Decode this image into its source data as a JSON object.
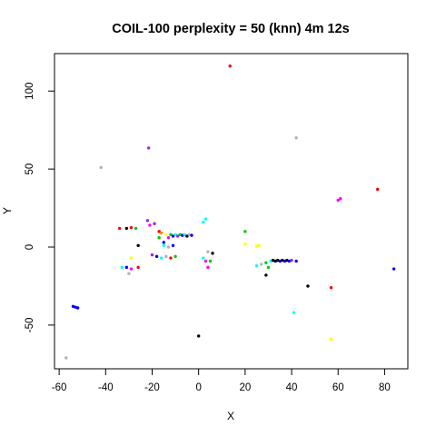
{
  "chart_data": {
    "type": "scatter",
    "title": "COIL-100 perplexity = 50 (knn) 4m 12s",
    "xlabel": "X",
    "ylabel": "Y",
    "xlim": [
      -62,
      90
    ],
    "ylim": [
      -78,
      124
    ],
    "xticks": [
      -60,
      -40,
      -20,
      0,
      20,
      40,
      60,
      80
    ],
    "yticks": [
      -50,
      0,
      50,
      100
    ],
    "xtick_labels": [
      "-60",
      "-40",
      "-20",
      "0",
      "20",
      "40",
      "60",
      "80"
    ],
    "ytick_labels": [
      "-50",
      "0",
      "50",
      "100"
    ],
    "grid": false,
    "legend": "none",
    "points": [
      {
        "x": 13.5,
        "y": 116,
        "color": "#ff0000"
      },
      {
        "x": 42,
        "y": 70,
        "color": "#b3b3b3"
      },
      {
        "x": -42,
        "y": 51,
        "color": "#b3b3b3"
      },
      {
        "x": -21.5,
        "y": 63.5,
        "color": "#a020f0"
      },
      {
        "x": 60,
        "y": 30,
        "color": "#ff00ff"
      },
      {
        "x": 61,
        "y": 31,
        "color": "#ff00ff"
      },
      {
        "x": 77,
        "y": 37,
        "color": "#ff0000"
      },
      {
        "x": 3,
        "y": 18,
        "color": "#00ffff"
      },
      {
        "x": 2,
        "y": 16,
        "color": "#00ffff"
      },
      {
        "x": 20,
        "y": 10,
        "color": "#00cc00"
      },
      {
        "x": 20,
        "y": 2,
        "color": "#ffff00"
      },
      {
        "x": 25,
        "y": 0.5,
        "color": "#ffff00"
      },
      {
        "x": 26,
        "y": 1,
        "color": "#ffff00"
      },
      {
        "x": -34,
        "y": 12,
        "color": "#ff0000"
      },
      {
        "x": -31,
        "y": 12,
        "color": "#000000"
      },
      {
        "x": -29,
        "y": 12.5,
        "color": "#ff0000"
      },
      {
        "x": -27,
        "y": 12,
        "color": "#00cc00"
      },
      {
        "x": -26,
        "y": 1,
        "color": "#000000"
      },
      {
        "x": -22,
        "y": 17,
        "color": "#a020f0"
      },
      {
        "x": -21,
        "y": 14,
        "color": "#ff00ff"
      },
      {
        "x": -19,
        "y": 15,
        "color": "#a020f0"
      },
      {
        "x": -17,
        "y": 10,
        "color": "#ff0000"
      },
      {
        "x": -16,
        "y": 9,
        "color": "#ff7f00"
      },
      {
        "x": -17,
        "y": 6,
        "color": "#00cc00"
      },
      {
        "x": -15,
        "y": 3,
        "color": "#0000ff"
      },
      {
        "x": -14,
        "y": 8,
        "color": "#ffff00"
      },
      {
        "x": -13,
        "y": 6,
        "color": "#ff00ff"
      },
      {
        "x": -12,
        "y": 8,
        "color": "#00cc00"
      },
      {
        "x": -11,
        "y": 7,
        "color": "#0000ff"
      },
      {
        "x": -10,
        "y": 8,
        "color": "#00ffff"
      },
      {
        "x": -9,
        "y": 7,
        "color": "#a020f0"
      },
      {
        "x": -8,
        "y": 8,
        "color": "#00cc00"
      },
      {
        "x": -7,
        "y": 7.5,
        "color": "#0000ff"
      },
      {
        "x": -6,
        "y": 8,
        "color": "#00ffff"
      },
      {
        "x": -5,
        "y": 7,
        "color": "#000000"
      },
      {
        "x": -4,
        "y": 8,
        "color": "#b3b3b3"
      },
      {
        "x": -3,
        "y": 7.5,
        "color": "#0000ff"
      },
      {
        "x": -15,
        "y": 1,
        "color": "#00ffff"
      },
      {
        "x": -13,
        "y": 0,
        "color": "#b3b3b3"
      },
      {
        "x": -11,
        "y": 1,
        "color": "#0000ff"
      },
      {
        "x": -20,
        "y": -5,
        "color": "#a020f0"
      },
      {
        "x": -18,
        "y": -6,
        "color": "#0000ff"
      },
      {
        "x": -16,
        "y": -7,
        "color": "#00ffff"
      },
      {
        "x": -14,
        "y": -6,
        "color": "#b3b3b3"
      },
      {
        "x": -12,
        "y": -7,
        "color": "#ff0000"
      },
      {
        "x": -10,
        "y": -6,
        "color": "#00cc00"
      },
      {
        "x": -29,
        "y": -7,
        "color": "#ffff00"
      },
      {
        "x": -33,
        "y": -13,
        "color": "#00ffff"
      },
      {
        "x": -31,
        "y": -13,
        "color": "#0000ff"
      },
      {
        "x": -29,
        "y": -14,
        "color": "#ff00ff"
      },
      {
        "x": -26,
        "y": -13,
        "color": "#ff0000"
      },
      {
        "x": -30,
        "y": -17,
        "color": "#b3b3b3"
      },
      {
        "x": 2,
        "y": -7,
        "color": "#00ffff"
      },
      {
        "x": 3,
        "y": -9,
        "color": "#ff00ff"
      },
      {
        "x": 4,
        "y": -3,
        "color": "#b3b3b3"
      },
      {
        "x": 6,
        "y": -4,
        "color": "#000000"
      },
      {
        "x": 5,
        "y": -9,
        "color": "#00cc00"
      },
      {
        "x": 4,
        "y": -13,
        "color": "#ff00ff"
      },
      {
        "x": 25,
        "y": -12,
        "color": "#00ffff"
      },
      {
        "x": 27,
        "y": -11,
        "color": "#b3b3b3"
      },
      {
        "x": 29,
        "y": -10,
        "color": "#00cc00"
      },
      {
        "x": 31,
        "y": -9,
        "color": "#00ffff"
      },
      {
        "x": 32,
        "y": -8.5,
        "color": "#000000"
      },
      {
        "x": 33,
        "y": -9,
        "color": "#000000"
      },
      {
        "x": 34,
        "y": -8.5,
        "color": "#000000"
      },
      {
        "x": 35,
        "y": -9,
        "color": "#0000ff"
      },
      {
        "x": 36,
        "y": -8.5,
        "color": "#000000"
      },
      {
        "x": 37,
        "y": -9,
        "color": "#0000ff"
      },
      {
        "x": 38,
        "y": -8.5,
        "color": "#000000"
      },
      {
        "x": 39,
        "y": -9,
        "color": "#0000ff"
      },
      {
        "x": 40,
        "y": -8.5,
        "color": "#a020f0"
      },
      {
        "x": 42,
        "y": -9,
        "color": "#0000ff"
      },
      {
        "x": 30,
        "y": -13,
        "color": "#00cc00"
      },
      {
        "x": 29,
        "y": -18,
        "color": "#000000"
      },
      {
        "x": 47,
        "y": -25,
        "color": "#000000"
      },
      {
        "x": 57,
        "y": -26,
        "color": "#ff0000"
      },
      {
        "x": 84,
        "y": -14,
        "color": "#0000ff"
      },
      {
        "x": -54,
        "y": -38,
        "color": "#0000ff"
      },
      {
        "x": -53,
        "y": -38.5,
        "color": "#0000ff"
      },
      {
        "x": -52,
        "y": -39,
        "color": "#0000ff"
      },
      {
        "x": 41,
        "y": -42,
        "color": "#00ffff"
      },
      {
        "x": 0,
        "y": -57,
        "color": "#000000"
      },
      {
        "x": 57,
        "y": -59,
        "color": "#ffff00"
      },
      {
        "x": -57,
        "y": -71,
        "color": "#b3b3b3"
      }
    ]
  }
}
